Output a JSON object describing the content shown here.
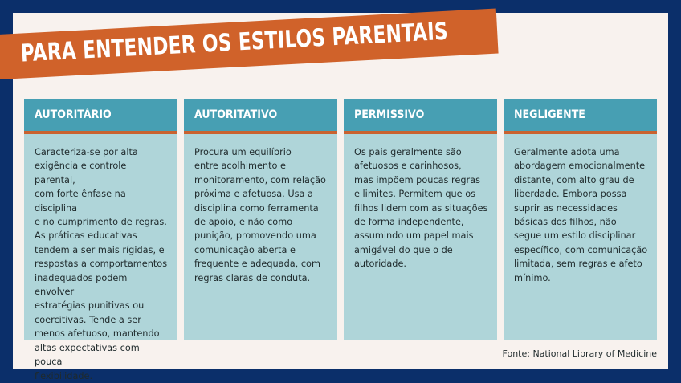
{
  "title": "PARA ENTENDER OS ESTILOS PARENTAIS",
  "colors": {
    "background": "#0b2f6a",
    "panel": "#f8f2ee",
    "accent": "#d0622a",
    "header": "#479fb3",
    "card": "#afd5d9"
  },
  "styles": [
    {
      "name": "AUTORITÁRIO",
      "text": "Caracteriza-se por alta\nexigência e controle parental,\ncom forte ênfase na disciplina\ne no cumprimento de regras.\nAs práticas educativas\ntendem a ser mais rígidas, e\nrespostas a comportamentos\ninadequados podem envolver\nestratégias punitivas ou\ncoercitivas. Tende a ser\nmenos afetuoso, mantendo\naltas expectativas com pouca\nflexibilidade."
    },
    {
      "name": "AUTORITATIVO",
      "text": "Procura um equilíbrio\nentre acolhimento e\nmonitoramento, com relação\npróxima e afetuosa. Usa a\ndisciplina como ferramenta\nde apoio, e não como\npunição, promovendo uma\ncomunicação aberta e\nfrequente e adequada, com\nregras claras de conduta."
    },
    {
      "name": "PERMISSIVO",
      "text": "Os pais geralmente são\nafetuosos e carinhosos,\nmas impõem poucas regras\ne limites. Permitem que os\nfilhos lidem com as situações\nde forma independente,\nassumindo um papel mais\namigável do que o de\nautoridade."
    },
    {
      "name": "NEGLIGENTE",
      "text": "Geralmente adota uma\nabordagem emocionalmente\ndistante, com alto grau de\nliberdade. Embora possa\nsuprir as necessidades\nbásicas dos filhos, não\nsegue um estilo disciplinar\nespecífico, com comunicação\nlimitada, sem regras e afeto\nmínimo."
    }
  ],
  "source": "Fonte: National Library of Medicine"
}
